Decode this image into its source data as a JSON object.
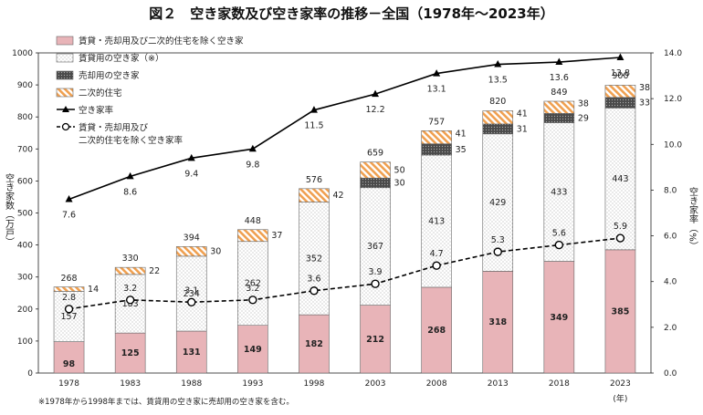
{
  "title": "図２　空き家数及び空き家率の推移－全国（1978年～2023年）",
  "note": "※1978年から1998年までは、賃貸用の空き家に売却用の空き家を含む。",
  "x_unit": "(年)",
  "ylabel_left": "空き家数（万戸）",
  "ylabel_right": "空き家率（%）",
  "colors": {
    "rent_other": "#e8b4b8",
    "rent": "#ffffff",
    "sale": "#555555",
    "second": "#f0a050",
    "rate_line": "#000000"
  },
  "chart_data": {
    "type": "bar",
    "categories": [
      "1978",
      "1983",
      "1988",
      "1993",
      "1998",
      "2003",
      "2008",
      "2013",
      "2018",
      "2023"
    ],
    "series": [
      {
        "name": "賃貸・売却用及び二次的住宅を除く空き家",
        "values": [
          98,
          125,
          131,
          149,
          182,
          212,
          268,
          318,
          349,
          385
        ]
      },
      {
        "name": "賃貸用の空き家（※）",
        "values": [
          157,
          183,
          234,
          262,
          352,
          367,
          413,
          429,
          433,
          443
        ]
      },
      {
        "name": "売却用の空き家",
        "values": [
          null,
          null,
          null,
          null,
          null,
          30,
          35,
          31,
          29,
          33
        ]
      },
      {
        "name": "二次的住宅",
        "values": [
          14,
          22,
          30,
          37,
          42,
          50,
          41,
          41,
          38,
          38
        ]
      }
    ],
    "totals": [
      268,
      330,
      394,
      448,
      576,
      659,
      757,
      820,
      849,
      900
    ],
    "lines": [
      {
        "name": "空き家率",
        "values": [
          7.6,
          8.6,
          9.4,
          9.8,
          11.5,
          12.2,
          13.1,
          13.5,
          13.6,
          13.8
        ],
        "labels": [
          "7.6",
          "8.6",
          "9.4",
          "9.8",
          "11.5",
          "12.2",
          "13.1",
          "13.5",
          "13.6",
          "13.8"
        ]
      },
      {
        "name": "賃貸・売却用及び\n二次的住宅を除く空き家率",
        "values": [
          2.8,
          3.2,
          3.1,
          3.2,
          3.6,
          3.9,
          4.7,
          5.3,
          5.6,
          5.9
        ],
        "labels": [
          "2.8",
          "3.2",
          "3.1",
          "3.2",
          "3.6",
          "3.9",
          "4.7",
          "5.3",
          "5.6",
          "5.9"
        ]
      }
    ],
    "ylim": [
      0,
      1000
    ],
    "yticks": [
      "0",
      "100",
      "200",
      "300",
      "400",
      "500",
      "600",
      "700",
      "800",
      "900",
      "1000"
    ],
    "ylim_right": [
      0,
      14
    ],
    "yticks_right": [
      "0.0",
      "2.0",
      "4.0",
      "6.0",
      "8.0",
      "10.0",
      "12.0",
      "14.0"
    ],
    "legend_position": "top-left"
  }
}
